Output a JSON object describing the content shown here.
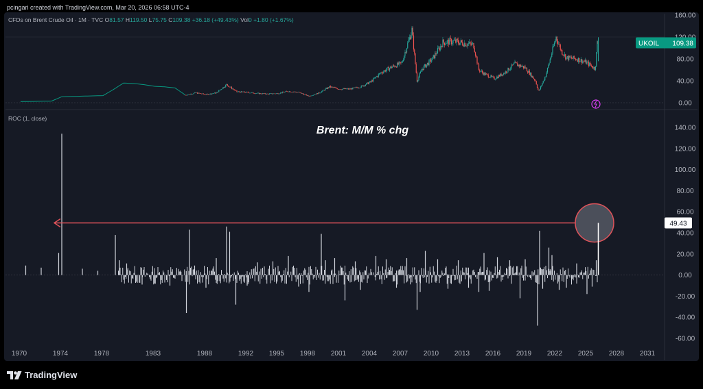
{
  "header": {
    "text": "pcingari created with TradingView.com, Mar 20, 2026 06:58 UTC-4"
  },
  "legend": {
    "symbol": "CFDs on Brent Crude Oil · 1M · TVC",
    "o_label": "O",
    "o_val": "81.57",
    "h_label": "H",
    "h_val": "119.50",
    "l_label": "L",
    "l_val": "75.75",
    "c_label": "C",
    "c_val": "109.38",
    "chg": "+36.18 (+49.43%)",
    "vol_label": "Vol",
    "vol_val": "0",
    "vol_chg": "+1.80 (+1.67%)"
  },
  "roc_legend": "ROC (1, close)",
  "annotation": "Brent: M/M % chg",
  "brand": "TradingView",
  "colors": {
    "up": "#26a69a",
    "down": "#ef5350",
    "early": "#089981",
    "roc_bar": "#d1d4dc",
    "arrow": "#e0535a",
    "badge_green": "#089981"
  },
  "chart_data": [
    {
      "type": "line",
      "title": "CFDs on Brent Crude Oil · 1M · TVC",
      "series_label": "UKOIL",
      "last_value": "109.38",
      "ylim": [
        0,
        160
      ],
      "yticks": [
        "0.00",
        "40.00",
        "80.00",
        "120.00",
        "160.00"
      ],
      "x": [
        1970,
        1973,
        1974,
        1976,
        1978,
        1979,
        1980,
        1981,
        1982,
        1983,
        1984,
        1985,
        1986,
        1987,
        1988,
        1989,
        1990,
        1991,
        1992,
        1993,
        1994,
        1995,
        1996,
        1997,
        1998,
        1999,
        2000,
        2001,
        2002,
        2003,
        2004,
        2005,
        2006,
        2007,
        2008,
        2008.5,
        2009,
        2010,
        2011,
        2012,
        2013,
        2014,
        2014.5,
        2015,
        2016,
        2017,
        2018,
        2019,
        2020,
        2020.3,
        2021,
        2022,
        2022.5,
        2023,
        2024,
        2025,
        2025.8,
        2026
      ],
      "values": [
        2,
        3,
        11,
        12,
        13,
        24,
        36,
        35,
        33,
        30,
        29,
        27,
        14,
        18,
        15,
        18,
        33,
        20,
        19,
        17,
        16,
        17,
        21,
        19,
        12,
        18,
        29,
        25,
        25,
        29,
        38,
        55,
        65,
        72,
        133,
        40,
        62,
        80,
        110,
        112,
        109,
        105,
        60,
        53,
        44,
        55,
        71,
        64,
        40,
        20,
        50,
        120,
        95,
        82,
        80,
        73,
        62,
        109
      ]
    },
    {
      "type": "bar",
      "title": "ROC (1, close)",
      "ylim": [
        -60,
        140
      ],
      "yticks": [
        "-60.00",
        "-40.00",
        "-20.00",
        "0.00",
        "20.00",
        "40.00",
        "60.00",
        "80.00",
        "100.00",
        "120.00",
        "140.00"
      ],
      "last_value": "49.43",
      "spikes": [
        {
          "x": 1970.5,
          "y": 9
        },
        {
          "x": 1972.0,
          "y": 7
        },
        {
          "x": 1973.7,
          "y": 21
        },
        {
          "x": 1974.0,
          "y": 134
        },
        {
          "x": 1976.0,
          "y": 6
        },
        {
          "x": 1977.5,
          "y": 4
        },
        {
          "x": 1979.2,
          "y": 38
        },
        {
          "x": 1979.6,
          "y": 14
        },
        {
          "x": 1980.3,
          "y": 11
        },
        {
          "x": 1981.8,
          "y": -9
        },
        {
          "x": 1983.0,
          "y": -8
        },
        {
          "x": 1984.5,
          "y": -10
        },
        {
          "x": 1986.1,
          "y": -36
        },
        {
          "x": 1986.4,
          "y": 43
        },
        {
          "x": 1986.9,
          "y": 9
        },
        {
          "x": 1988.0,
          "y": -12
        },
        {
          "x": 1989.0,
          "y": 16
        },
        {
          "x": 1990.0,
          "y": 46
        },
        {
          "x": 1990.3,
          "y": 41
        },
        {
          "x": 1990.9,
          "y": -28
        },
        {
          "x": 1992.0,
          "y": -10
        },
        {
          "x": 1993.0,
          "y": 12
        },
        {
          "x": 1994.5,
          "y": 13
        },
        {
          "x": 1996.0,
          "y": 18
        },
        {
          "x": 1997.0,
          "y": -11
        },
        {
          "x": 1998.0,
          "y": -16
        },
        {
          "x": 1999.2,
          "y": 39
        },
        {
          "x": 1999.6,
          "y": 14
        },
        {
          "x": 2000.5,
          "y": 16
        },
        {
          "x": 2001.5,
          "y": -24
        },
        {
          "x": 2002.5,
          "y": 13
        },
        {
          "x": 2003.0,
          "y": -14
        },
        {
          "x": 2004.5,
          "y": 18
        },
        {
          "x": 2005.5,
          "y": 15
        },
        {
          "x": 2006.5,
          "y": -12
        },
        {
          "x": 2007.5,
          "y": 16
        },
        {
          "x": 2008.5,
          "y": -33
        },
        {
          "x": 2008.8,
          "y": -16
        },
        {
          "x": 2009.3,
          "y": 23
        },
        {
          "x": 2010.5,
          "y": 15
        },
        {
          "x": 2011.5,
          "y": -13
        },
        {
          "x": 2012.5,
          "y": 14
        },
        {
          "x": 2013.5,
          "y": -12
        },
        {
          "x": 2014.5,
          "y": -16
        },
        {
          "x": 2015.0,
          "y": 21
        },
        {
          "x": 2015.5,
          "y": -15
        },
        {
          "x": 2016.3,
          "y": 17
        },
        {
          "x": 2017.5,
          "y": 14
        },
        {
          "x": 2018.5,
          "y": -22
        },
        {
          "x": 2019.0,
          "y": 15
        },
        {
          "x": 2020.2,
          "y": -48
        },
        {
          "x": 2020.4,
          "y": 42
        },
        {
          "x": 2020.7,
          "y": -13
        },
        {
          "x": 2021.3,
          "y": 26
        },
        {
          "x": 2021.6,
          "y": 19
        },
        {
          "x": 2022.3,
          "y": -14
        },
        {
          "x": 2023.0,
          "y": -12
        },
        {
          "x": 2024.0,
          "y": 11
        },
        {
          "x": 2025.0,
          "y": -18
        },
        {
          "x": 2025.5,
          "y": -11
        },
        {
          "x": 2025.9,
          "y": 14
        },
        {
          "x": 2026.1,
          "y": 49.43
        }
      ],
      "annotation_level": 49.43
    }
  ],
  "x_axis": {
    "ticks": [
      "1970",
      "1974",
      "1978",
      "1983",
      "1988",
      "1992",
      "1995",
      "1998",
      "2001",
      "2004",
      "2007",
      "2010",
      "2013",
      "2016",
      "2019",
      "2022",
      "2025",
      "2028",
      "2031"
    ]
  }
}
